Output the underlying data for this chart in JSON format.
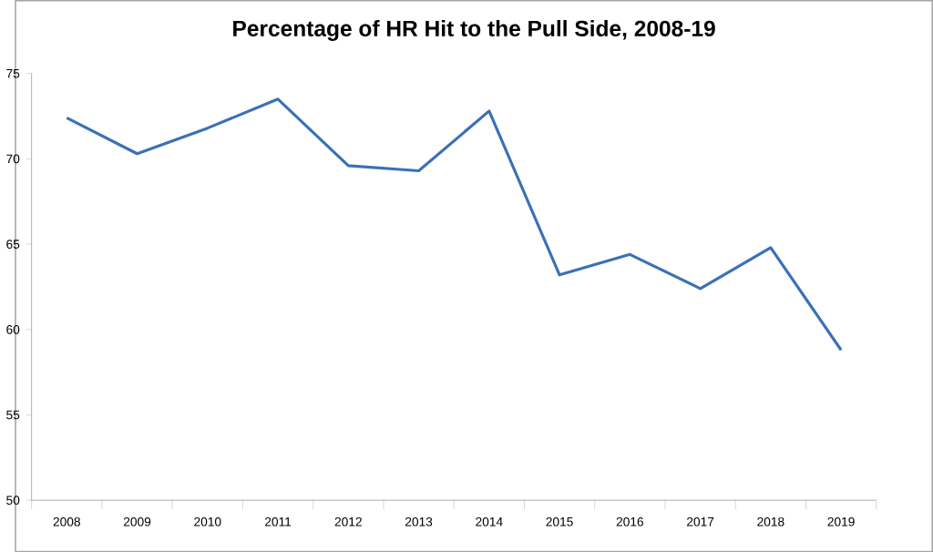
{
  "chart_data": {
    "type": "line",
    "title": "Percentage of HR Hit to the Pull Side, 2008-19",
    "categories": [
      "2008",
      "2009",
      "2010",
      "2011",
      "2012",
      "2013",
      "2014",
      "2015",
      "2016",
      "2017",
      "2018",
      "2019"
    ],
    "values": [
      72.4,
      70.3,
      71.8,
      73.5,
      69.6,
      69.3,
      72.8,
      63.2,
      64.4,
      62.4,
      64.8,
      58.8
    ],
    "color": "#3b70b6",
    "ylim": [
      50,
      75
    ],
    "yticks": [
      50,
      55,
      60,
      65,
      70,
      75
    ]
  }
}
